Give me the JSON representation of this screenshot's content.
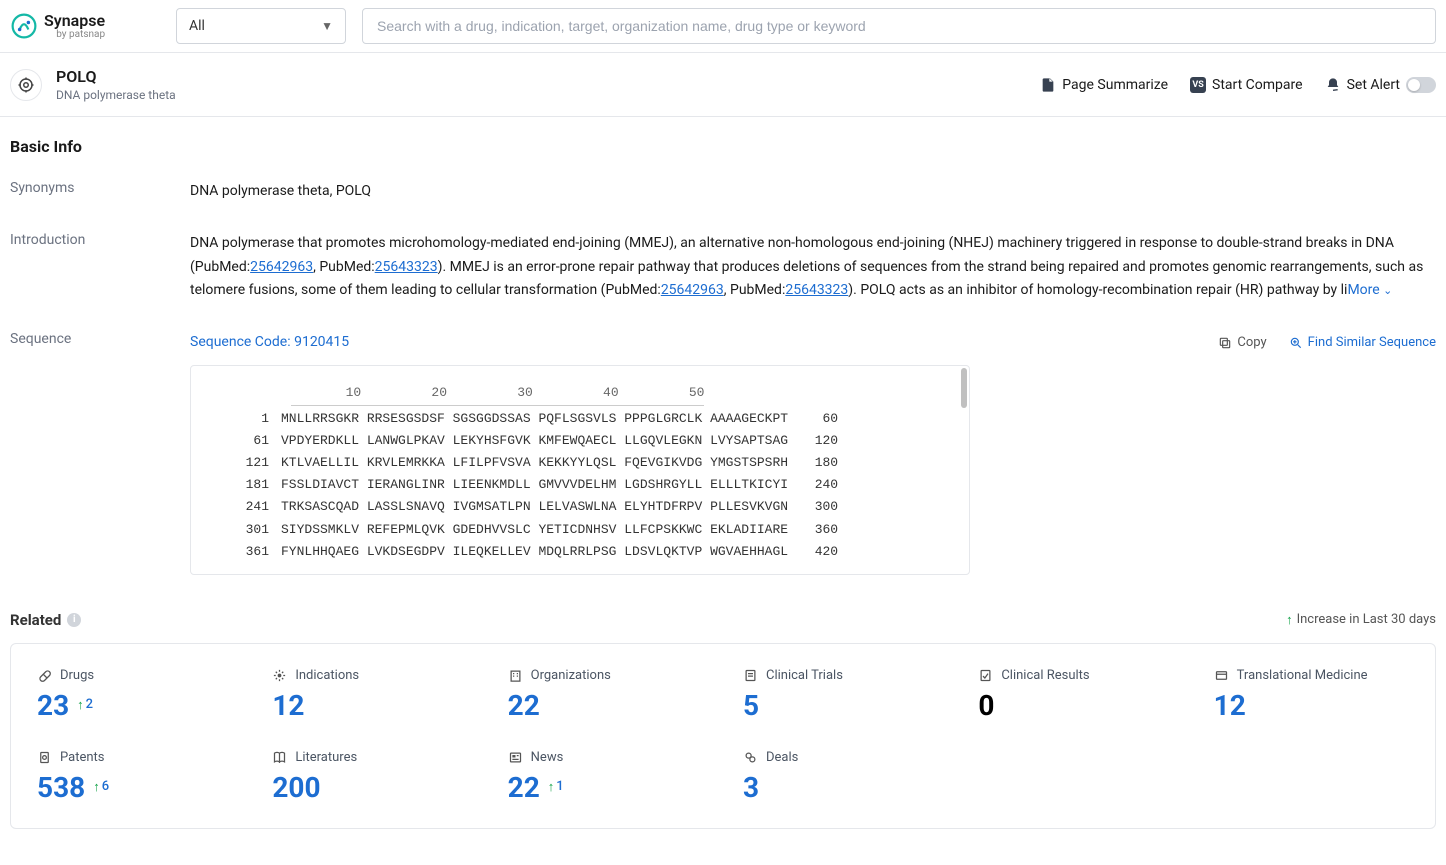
{
  "brand": {
    "name": "Synapse",
    "byline": "by patsnap"
  },
  "search": {
    "filter_label": "All",
    "placeholder": "Search with a drug, indication, target, organization name, drug type or keyword"
  },
  "header": {
    "title": "POLQ",
    "subtitle": "DNA polymerase theta",
    "actions": {
      "summarize": "Page Summarize",
      "compare_badge": "VS",
      "compare": "Start Compare",
      "alert": "Set Alert"
    }
  },
  "basic_info": {
    "section_title": "Basic Info",
    "synonyms_label": "Synonyms",
    "synonyms_value": "DNA polymerase theta,  POLQ",
    "introduction_label": "Introduction",
    "intro_part1": "DNA polymerase that promotes microhomology-mediated end-joining (MMEJ), an alternative non-homologous end-joining (NHEJ) machinery triggered in response to double-strand breaks in DNA (PubMed:",
    "intro_pm1": "25642963",
    "intro_part2": ", PubMed:",
    "intro_pm2": "25643323",
    "intro_part3": "). MMEJ is an error-prone repair pathway that produces deletions of sequences from the strand being repaired and promotes genomic rearrangements, such as telomere fusions, some of them leading to cellular transformation (PubMed:",
    "intro_pm3": "25642963",
    "intro_part4": ", PubMed:",
    "intro_pm4": "25643323",
    "intro_part5": "). POLQ acts as an inhibitor of homology-recombination repair (HR) pathway by li",
    "more_label": "More"
  },
  "sequence": {
    "label": "Sequence",
    "code_prefix": "Sequence Code: ",
    "code": "9120415",
    "copy_label": "Copy",
    "find_label": "Find Similar Sequence",
    "ruler": "       10         20         30         40         50",
    "rows": [
      {
        "start": "1",
        "seq": "MNLLRRSGKR RRSESGSDSF SGSGGDSSAS PQFLSGSVLS PPPGLGRCLK AAAAGECKPT",
        "end": "60"
      },
      {
        "start": "61",
        "seq": "VPDYERDKLL LANWGLPKAV LEKYHSFGVK KMFEWQAECL LLGQVLEGKN LVYSAPTSAG",
        "end": "120"
      },
      {
        "start": "121",
        "seq": "KTLVAELLIL KRVLEMRKKA LFILPFVSVA KEKKYYLQSL FQEVGIKVDG YMGSTSPSRH",
        "end": "180"
      },
      {
        "start": "181",
        "seq": "FSSLDIAVCT IERANGLINR LIEENKMDLL GMVVVDELHM LGDSHRGYLL ELLLTKICYI",
        "end": "240"
      },
      {
        "start": "241",
        "seq": "TRKSASCQAD LASSLSNAVQ IVGMSATLPN LELVASWLNA ELYHTDFRPV PLLESVKVGN",
        "end": "300"
      },
      {
        "start": "301",
        "seq": "SIYDSSMKLV REFEPMLQVK GDEDHVVSLC YETICDNHSV LLFCPSKKWC EKLADIIARE",
        "end": "360"
      },
      {
        "start": "361",
        "seq": "FYNLHHQAEG LVKDSEGDPV ILEQKELLEV MDQLRRLPSG LDSVLQKTVP WGVAEHHAGL",
        "end": "420"
      }
    ]
  },
  "related": {
    "title": "Related",
    "legend": "Increase in Last 30 days",
    "cards": [
      {
        "label": "Drugs",
        "count": "23",
        "delta": "2",
        "link": true
      },
      {
        "label": "Indications",
        "count": "12",
        "link": true
      },
      {
        "label": "Organizations",
        "count": "22",
        "link": true
      },
      {
        "label": "Clinical Trials",
        "count": "5",
        "link": true
      },
      {
        "label": "Clinical Results",
        "count": "0",
        "link": false
      },
      {
        "label": "Translational Medicine",
        "count": "12",
        "link": true
      },
      {
        "label": "Patents",
        "count": "538",
        "delta": "6",
        "link": true
      },
      {
        "label": "Literatures",
        "count": "200",
        "link": true
      },
      {
        "label": "News",
        "count": "22",
        "delta": "1",
        "link": true
      },
      {
        "label": "Deals",
        "count": "3",
        "link": true
      }
    ]
  }
}
